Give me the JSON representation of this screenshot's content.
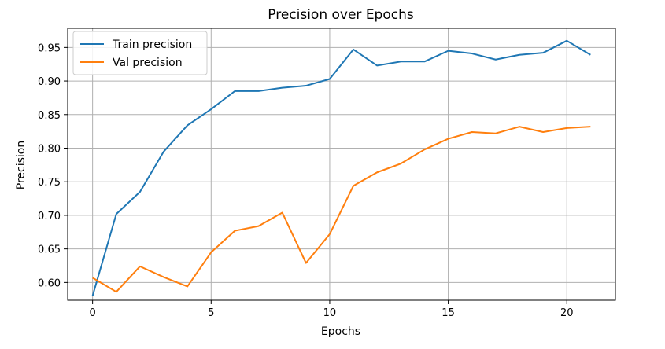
{
  "chart_data": {
    "type": "line",
    "title": "Precision over Epochs",
    "xlabel": "Epochs",
    "ylabel": "Precision",
    "xlim": [
      -1.05,
      22.05
    ],
    "ylim": [
      0.5735,
      0.9785
    ],
    "xticks": [
      0,
      5,
      10,
      15,
      20
    ],
    "yticks": [
      0.6,
      0.65,
      0.7,
      0.75,
      0.8,
      0.85,
      0.9,
      0.95
    ],
    "x": [
      0,
      1,
      2,
      3,
      4,
      5,
      6,
      7,
      8,
      9,
      10,
      11,
      12,
      13,
      14,
      15,
      16,
      17,
      18,
      19,
      20,
      21
    ],
    "series": [
      {
        "name": "Train precision",
        "color": "#1f77b4",
        "values": [
          0.58,
          0.702,
          0.735,
          0.795,
          0.834,
          0.858,
          0.885,
          0.885,
          0.89,
          0.893,
          0.903,
          0.947,
          0.923,
          0.929,
          0.929,
          0.945,
          0.941,
          0.932,
          0.939,
          0.942,
          0.96,
          0.939
        ]
      },
      {
        "name": "Val precision",
        "color": "#ff7f0e",
        "values": [
          0.607,
          0.586,
          0.624,
          0.608,
          0.594,
          0.645,
          0.677,
          0.684,
          0.704,
          0.629,
          0.672,
          0.744,
          0.764,
          0.777,
          0.798,
          0.814,
          0.824,
          0.822,
          0.832,
          0.824,
          0.83,
          0.832
        ]
      }
    ],
    "grid": true,
    "legend": "top-left"
  }
}
